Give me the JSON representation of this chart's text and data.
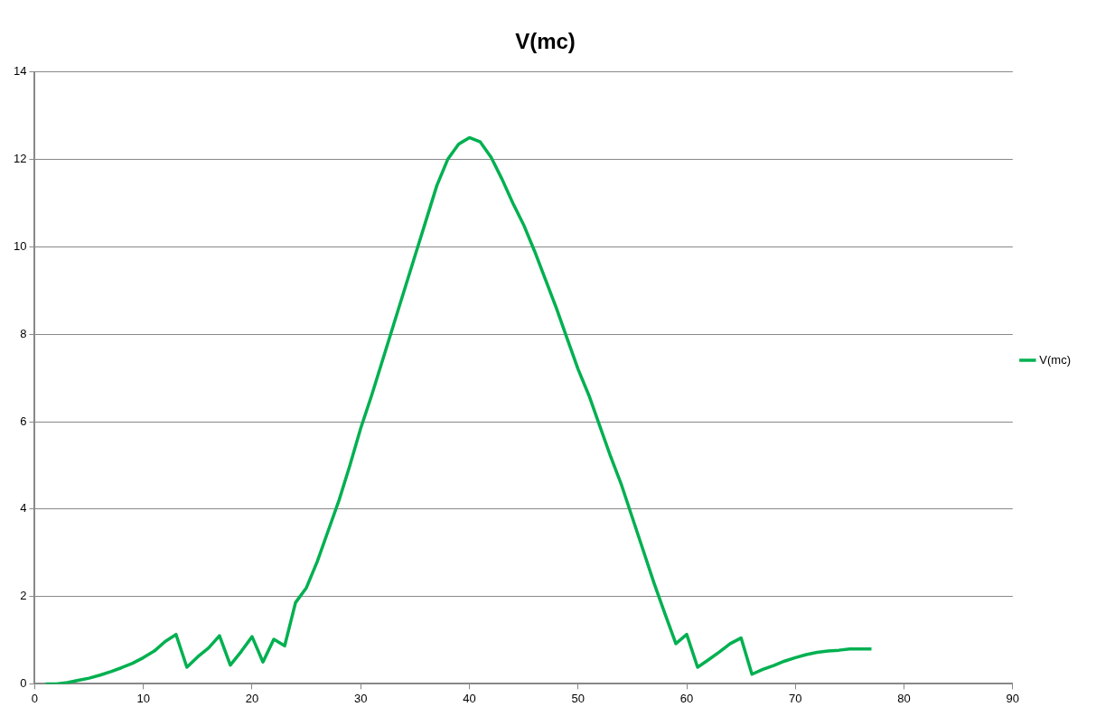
{
  "chart_data": {
    "type": "line",
    "title": "V(mc)",
    "x": [
      1,
      2,
      3,
      4,
      5,
      6,
      7,
      8,
      9,
      10,
      11,
      12,
      13,
      14,
      15,
      16,
      17,
      18,
      19,
      20,
      21,
      22,
      23,
      24,
      25,
      26,
      27,
      28,
      29,
      30,
      31,
      32,
      33,
      34,
      35,
      36,
      37,
      38,
      39,
      40,
      41,
      42,
      43,
      44,
      45,
      46,
      47,
      48,
      49,
      50,
      51,
      52,
      53,
      54,
      55,
      56,
      57,
      58,
      59,
      60,
      61,
      62,
      63,
      64,
      65,
      66,
      67,
      68,
      69,
      70,
      71,
      72,
      73,
      74,
      75,
      76,
      77
    ],
    "series": [
      {
        "name": "V(mc)",
        "color": "#00b050",
        "values": [
          0,
          0,
          0.03,
          0.08,
          0.13,
          0.2,
          0.28,
          0.37,
          0.47,
          0.6,
          0.75,
          0.97,
          1.13,
          0.38,
          0.62,
          0.82,
          1.1,
          0.43,
          0.74,
          1.08,
          0.5,
          1.02,
          0.87,
          1.86,
          2.2,
          2.8,
          3.5,
          4.2,
          5.0,
          5.85,
          6.6,
          7.4,
          8.2,
          9.0,
          9.8,
          10.6,
          11.4,
          12.0,
          12.35,
          12.5,
          12.4,
          12.05,
          11.55,
          11.0,
          10.5,
          9.9,
          9.25,
          8.6,
          7.9,
          7.2,
          6.6,
          5.9,
          5.2,
          4.55,
          3.8,
          3.05,
          2.3,
          1.6,
          0.92,
          1.13,
          0.38,
          0.55,
          0.73,
          0.92,
          1.05,
          0.22,
          0.33,
          0.42,
          0.52,
          0.6,
          0.67,
          0.72,
          0.75,
          0.77,
          0.8,
          0.8,
          0.8
        ]
      }
    ],
    "xlim": [
      0,
      90
    ],
    "xticks": [
      0,
      10,
      20,
      30,
      40,
      50,
      60,
      70,
      80,
      90
    ],
    "ylim": [
      0,
      14
    ],
    "yticks": [
      0,
      2,
      4,
      6,
      8,
      10,
      12,
      14
    ],
    "grid": "y",
    "legend": "right",
    "marker": "none",
    "line_style": "solid"
  }
}
